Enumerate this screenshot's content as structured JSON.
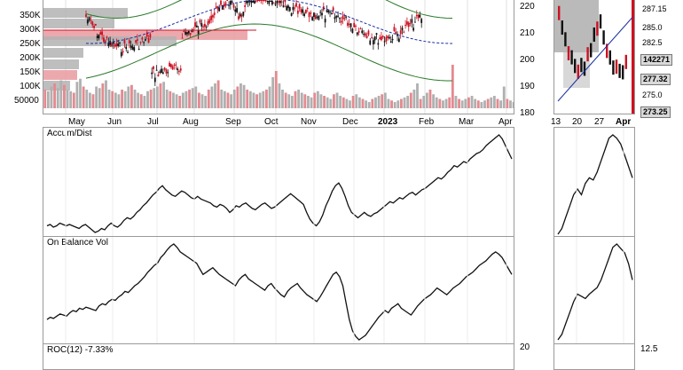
{
  "chart_data": [
    {
      "panel": "main-price",
      "type": "candlestick",
      "volume_axis_ticks": [
        "350K",
        "300K",
        "250K",
        "200K",
        "150K",
        "100K",
        "50000"
      ],
      "price_axis_ticks": [
        220,
        210,
        200,
        190,
        180
      ],
      "x_tick_labels": [
        "May",
        "Jun",
        "Jul",
        "Aug",
        "Sep",
        "Oct",
        "Nov",
        "Dec",
        "2023",
        "Feb",
        "Mar",
        "Apr"
      ],
      "x_tick_bold": [
        "2023"
      ],
      "volume_profile": "horizontal volume-by-price bars, grey and red",
      "volume_values": [
        60,
        55,
        70,
        80,
        65,
        90,
        75,
        60,
        55,
        50,
        85,
        95,
        70,
        60,
        50,
        45,
        70,
        65,
        80,
        90,
        60,
        55,
        50,
        45,
        60,
        55,
        70,
        75,
        60,
        50,
        45,
        40,
        55,
        60,
        65,
        70,
        80,
        85,
        60,
        55,
        50,
        45,
        40,
        50,
        55,
        60,
        65,
        70,
        50,
        45,
        40,
        60,
        70,
        80,
        90,
        60,
        55,
        50,
        45,
        60,
        70,
        80,
        75,
        60,
        55,
        50,
        45,
        50,
        55,
        60,
        70,
        100,
        120,
        80,
        60,
        50,
        45,
        40,
        55,
        60,
        50,
        45,
        40,
        35,
        50,
        55,
        45,
        40,
        35,
        30,
        45,
        50,
        40,
        35,
        30,
        25,
        40,
        45,
        35,
        30,
        25,
        20,
        30,
        35,
        40,
        45,
        50,
        30,
        25,
        20,
        25,
        30,
        35,
        40,
        50,
        60,
        80,
        30,
        40,
        50,
        60,
        45,
        35,
        30,
        25,
        30,
        35,
        140,
        40,
        30,
        25,
        30,
        35,
        40,
        30,
        25,
        20,
        25,
        30,
        35,
        40,
        30,
        25,
        70,
        30,
        25,
        20
      ]
    },
    {
      "panel": "mini-price",
      "type": "candlestick",
      "price_tags": [
        "287.15",
        "285.0",
        "282.5",
        "142271",
        "277.32",
        "275.0",
        "273.25"
      ],
      "price_tags_highlighted": [
        "142271",
        "277.32",
        "273.25"
      ],
      "x_tick_labels": [
        "13",
        "20",
        "27",
        "Apr"
      ],
      "x_tick_bold": [
        "Apr"
      ]
    },
    {
      "panel": "accum-dist",
      "type": "line",
      "label": "Accum/Dist",
      "y": [
        30,
        31,
        29,
        30,
        32,
        31,
        30,
        31,
        30,
        29,
        28,
        30,
        31,
        29,
        27,
        25,
        26,
        28,
        27,
        30,
        32,
        30,
        29,
        31,
        34,
        36,
        35,
        37,
        40,
        42,
        45,
        47,
        50,
        53,
        55,
        58,
        60,
        57,
        55,
        53,
        52,
        54,
        56,
        55,
        53,
        51,
        50,
        52,
        50,
        49,
        48,
        47,
        45,
        44,
        46,
        45,
        43,
        40,
        42,
        45,
        44,
        46,
        47,
        45,
        43,
        42,
        44,
        46,
        47,
        45,
        43,
        44,
        46,
        48,
        50,
        52,
        54,
        52,
        50,
        48,
        46,
        40,
        35,
        32,
        30,
        33,
        38,
        45,
        50,
        56,
        60,
        62,
        58,
        52,
        45,
        40,
        38,
        36,
        38,
        40,
        38,
        37,
        39,
        40,
        42,
        44,
        46,
        48,
        47,
        49,
        51,
        50,
        52,
        54,
        55,
        53,
        55,
        57,
        58,
        60,
        62,
        64,
        66,
        65,
        67,
        70,
        72,
        75,
        74,
        76,
        78,
        77,
        80,
        82,
        84,
        85,
        87,
        90,
        92,
        94,
        96,
        98,
        95,
        90,
        85,
        80
      ]
    },
    {
      "panel": "accum-dist-mini",
      "type": "line",
      "y": [
        10,
        15,
        25,
        35,
        45,
        50,
        45,
        55,
        60,
        58,
        65,
        75,
        85,
        95,
        98,
        95,
        90,
        80,
        70,
        60
      ]
    },
    {
      "panel": "on-balance-vol",
      "type": "line",
      "label": "On Balance Vol",
      "y": [
        30,
        32,
        31,
        33,
        35,
        34,
        33,
        36,
        38,
        37,
        40,
        39,
        41,
        40,
        39,
        38,
        42,
        44,
        43,
        46,
        48,
        47,
        50,
        52,
        55,
        54,
        57,
        60,
        62,
        65,
        68,
        72,
        75,
        78,
        80,
        85,
        88,
        92,
        95,
        97,
        94,
        90,
        88,
        86,
        84,
        82,
        80,
        75,
        70,
        72,
        74,
        76,
        73,
        70,
        68,
        66,
        64,
        62,
        60,
        65,
        68,
        70,
        66,
        64,
        62,
        60,
        58,
        56,
        60,
        62,
        58,
        55,
        52,
        50,
        55,
        58,
        60,
        62,
        58,
        55,
        52,
        50,
        48,
        46,
        50,
        55,
        60,
        65,
        70,
        72,
        68,
        60,
        45,
        30,
        20,
        15,
        12,
        14,
        16,
        20,
        24,
        28,
        32,
        35,
        38,
        36,
        40,
        42,
        44,
        40,
        38,
        36,
        34,
        38,
        42,
        45,
        48,
        50,
        52,
        55,
        58,
        56,
        54,
        52,
        55,
        58,
        60,
        62,
        65,
        68,
        70,
        72,
        75,
        78,
        80,
        82,
        85,
        88,
        90,
        88,
        85,
        80,
        75,
        70
      ]
    },
    {
      "panel": "on-balance-vol-mini",
      "type": "line",
      "y": [
        10,
        15,
        25,
        35,
        45,
        52,
        50,
        48,
        52,
        55,
        58,
        65,
        75,
        85,
        95,
        98,
        94,
        90,
        80,
        65
      ]
    },
    {
      "panel": "roc",
      "type": "line",
      "label": "ROC(12) -7.33%",
      "right_axis_ticks": [
        "20"
      ]
    },
    {
      "panel": "roc-mini",
      "type": "line",
      "right_axis_ticks": [
        "12.5"
      ]
    }
  ],
  "labels": {
    "accum_dist": "Accum/Dist",
    "obv": "On Balance Vol",
    "roc": "ROC(12) -7.33%",
    "roc_tick": "20",
    "roc_mini_tick": "12.5"
  },
  "colors": {
    "up": "#111111",
    "down": "#cc1122",
    "volume_up": "#b0b0b0",
    "volume_down": "#e48a90",
    "bollinger": "#2a7a2a",
    "ma_blue": "#1a2fa0",
    "highlight_tag": "#d9d9d9"
  }
}
